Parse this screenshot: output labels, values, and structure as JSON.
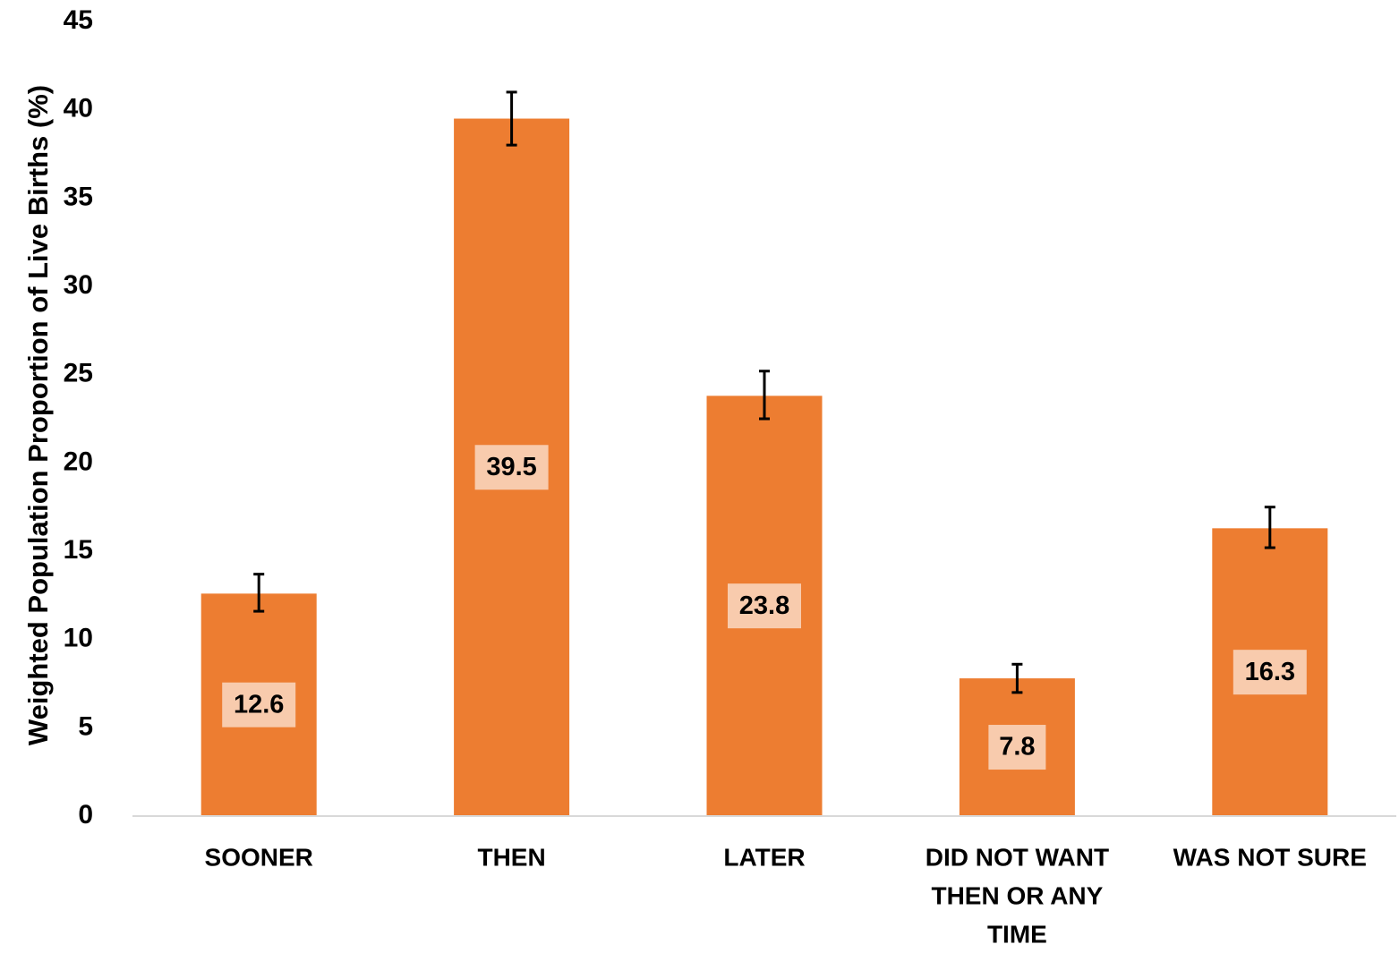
{
  "chart_data": {
    "type": "bar",
    "title": "",
    "xlabel": "",
    "ylabel": "Weighted Population Proportion of Live Births (%)",
    "ylim": [
      0,
      45
    ],
    "yticks": [
      0,
      5,
      10,
      15,
      20,
      25,
      30,
      35,
      40,
      45
    ],
    "grid": false,
    "legend": "none",
    "categories": [
      [
        "SOONER"
      ],
      [
        "THEN"
      ],
      [
        "LATER"
      ],
      [
        "DID NOT WANT",
        "THEN OR ANY",
        "TIME"
      ],
      [
        "WAS NOT SURE"
      ]
    ],
    "values": [
      12.6,
      39.5,
      23.8,
      7.8,
      16.3
    ],
    "data_labels": [
      "12.6",
      "39.5",
      "23.8",
      "7.8",
      "16.3"
    ],
    "error_bars": [
      [
        11.6,
        13.7
      ],
      [
        38.0,
        41.0
      ],
      [
        22.5,
        25.2
      ],
      [
        7.0,
        8.6
      ],
      [
        15.2,
        17.5
      ]
    ],
    "colors": {
      "bar": "#ED7D31",
      "label_box": "#F8CBAD",
      "axis": "#D9D9D9",
      "error_bar": "#000000"
    }
  }
}
